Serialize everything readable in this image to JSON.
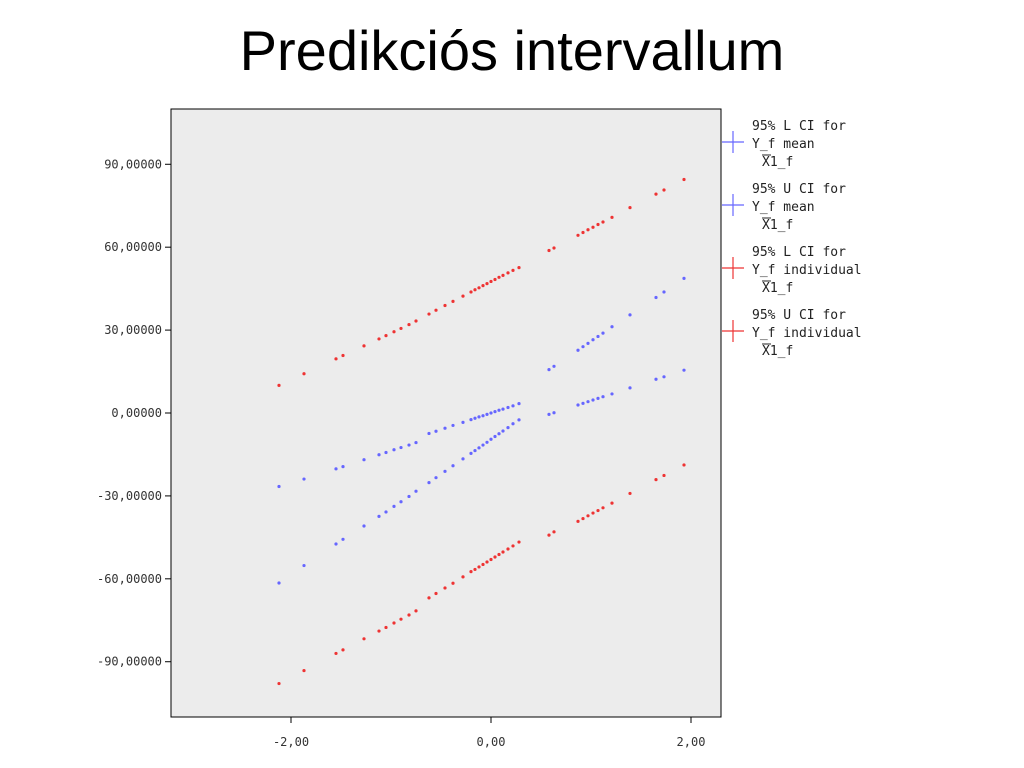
{
  "slide": {
    "title": "Predikciós intervallum"
  },
  "colors": {
    "mean": "#6666ff",
    "individual": "#ee3333",
    "plot_bg": "#ececec"
  },
  "chart_data": {
    "type": "scatter",
    "title": "",
    "xlabel": "",
    "ylabel": "",
    "xlim": [
      -3.2,
      2.3
    ],
    "ylim": [
      -110,
      110
    ],
    "x_ticks": [
      -2,
      0,
      2
    ],
    "x_tick_labels": [
      "-2,00",
      "0,00",
      "2,00"
    ],
    "y_ticks": [
      90,
      60,
      30,
      0,
      -30,
      -60,
      -90
    ],
    "y_tick_labels": [
      "90,00000",
      "60,00000",
      "30,00000",
      "0,00000",
      "-30,00000",
      "-60,00000",
      "-90,00000"
    ],
    "grid": false,
    "legend_position": "right",
    "x": [
      -2.12,
      -1.87,
      -1.55,
      -1.48,
      -1.27,
      -1.12,
      -1.05,
      -0.97,
      -0.9,
      -0.82,
      -0.75,
      -0.62,
      -0.55,
      -0.46,
      -0.38,
      -0.28,
      -0.2,
      -0.16,
      -0.12,
      -0.08,
      -0.04,
      0.0,
      0.04,
      0.08,
      0.12,
      0.17,
      0.22,
      0.28,
      0.58,
      0.63,
      0.87,
      0.92,
      0.97,
      1.02,
      1.07,
      1.12,
      1.21,
      1.39,
      1.65,
      1.73,
      1.93
    ],
    "series": [
      {
        "name": "95% L CI for Y_f mean X1_f",
        "color_key": "mean",
        "y": [
          -26.6,
          -23.9,
          -20.2,
          -19.4,
          -16.9,
          -15.1,
          -14.3,
          -13.3,
          -12.5,
          -11.6,
          -10.7,
          -7.4,
          -6.6,
          -5.5,
          -4.5,
          -3.4,
          -2.4,
          -1.9,
          -1.4,
          -1.0,
          -0.5,
          0.0,
          0.5,
          1.0,
          1.4,
          2.0,
          2.6,
          3.4,
          -0.5,
          0.1,
          2.9,
          3.5,
          4.1,
          4.7,
          5.3,
          5.9,
          6.9,
          9.1,
          12.2,
          13.1,
          15.5
        ]
      },
      {
        "name": "95% U CI for Y_f mean X1_f",
        "color_key": "mean",
        "y": [
          -61.5,
          -55.2,
          -47.4,
          -45.7,
          -40.9,
          -37.4,
          -35.8,
          -33.8,
          -32.1,
          -30.2,
          -28.3,
          -25.2,
          -23.4,
          -21.1,
          -19.1,
          -16.6,
          -14.6,
          -13.6,
          -12.6,
          -11.6,
          -10.6,
          -9.5,
          -8.5,
          -7.5,
          -6.5,
          -5.3,
          -3.9,
          -2.5,
          15.7,
          16.9,
          22.7,
          24.0,
          25.2,
          26.5,
          27.7,
          28.9,
          31.2,
          35.5,
          41.8,
          43.8,
          48.7
        ]
      },
      {
        "name": "95% L CI for Y_f individual X1_f",
        "color_key": "individual",
        "y": [
          10.0,
          14.2,
          19.6,
          20.8,
          24.3,
          26.8,
          28.0,
          29.4,
          30.6,
          32.0,
          33.3,
          35.8,
          37.2,
          38.9,
          40.4,
          42.3,
          43.8,
          44.6,
          45.3,
          46.1,
          46.8,
          47.6,
          48.3,
          49.1,
          49.8,
          50.7,
          51.6,
          52.6,
          58.8,
          59.7,
          64.3,
          65.3,
          66.3,
          67.2,
          68.2,
          69.1,
          70.8,
          74.3,
          79.2,
          80.7,
          84.5
        ]
      },
      {
        "name": "95% U CI for Y_f individual X1_f",
        "color_key": "individual",
        "y": [
          -97.9,
          -93.2,
          -87.0,
          -85.7,
          -81.7,
          -78.9,
          -77.6,
          -76.0,
          -74.6,
          -73.1,
          -71.6,
          -66.9,
          -65.3,
          -63.3,
          -61.6,
          -59.3,
          -57.4,
          -56.6,
          -55.7,
          -54.8,
          -53.9,
          -53.0,
          -52.1,
          -51.2,
          -50.3,
          -49.2,
          -48.1,
          -46.7,
          -44.2,
          -43.0,
          -39.2,
          -38.2,
          -37.2,
          -36.2,
          -35.3,
          -34.3,
          -32.6,
          -29.1,
          -24.1,
          -22.6,
          -18.8
        ]
      }
    ],
    "legend": [
      {
        "lines": [
          "95% L CI for",
          "Y_f mean",
          "X1_f"
        ],
        "color_key": "mean"
      },
      {
        "lines": [
          "95% U CI for",
          "Y_f mean",
          "X1_f"
        ],
        "color_key": "mean"
      },
      {
        "lines": [
          "95% L CI for",
          "Y_f individual",
          "X1_f"
        ],
        "color_key": "individual"
      },
      {
        "lines": [
          "95% U CI for",
          "Y_f individual",
          "X1_f"
        ],
        "color_key": "individual"
      }
    ]
  }
}
